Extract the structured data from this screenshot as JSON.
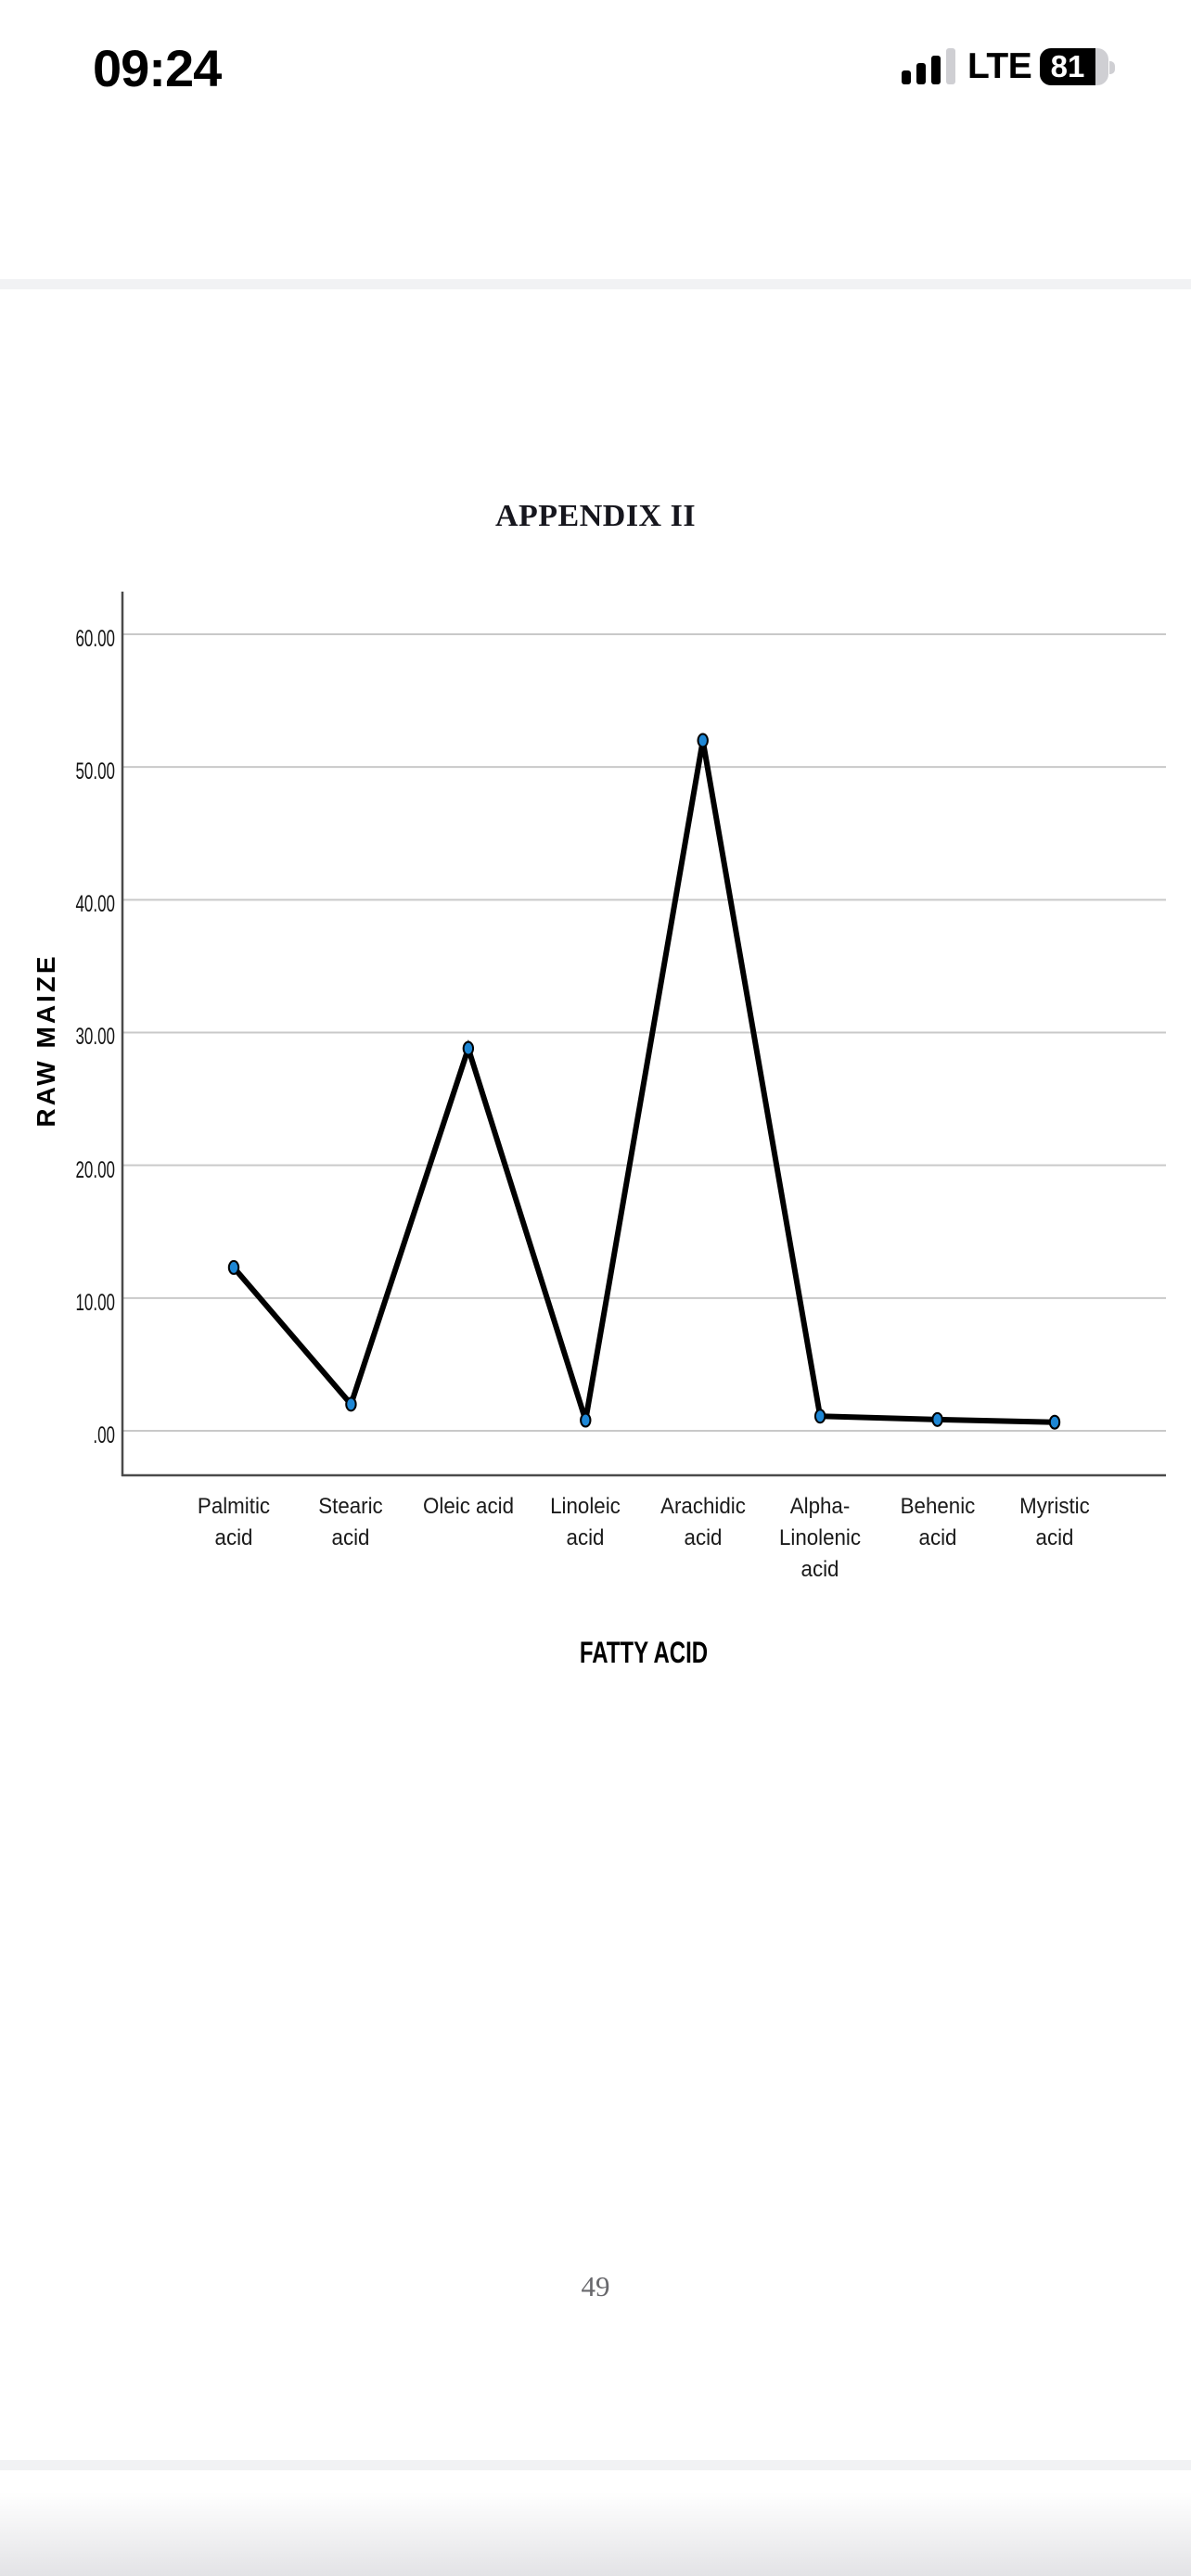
{
  "status_bar": {
    "time": "09:24",
    "network": "LTE",
    "battery_percent": "81",
    "signal_bars_filled": 3,
    "signal_bars_total": 4
  },
  "document": {
    "heading": "APPENDIX II",
    "page_number": "49"
  },
  "chart_data": {
    "type": "line",
    "title": "",
    "xlabel": "FATTY ACID",
    "ylabel": "RAW MAIZE",
    "categories": [
      "Palmitic\nacid",
      "Stearic\nacid",
      "Oleic acid",
      "Linoleic\nacid",
      "Arachidic\nacid",
      "Alpha-\nLinolenic\nacid",
      "Behenic\nacid",
      "Myristic\nacid"
    ],
    "values": [
      12.3,
      2.0,
      28.8,
      0.8,
      52.0,
      1.1,
      0.85,
      0.65
    ],
    "y_ticks": [
      ".00",
      "10.00",
      "20.00",
      "30.00",
      "40.00",
      "50.00",
      "60.00"
    ],
    "y_tick_values": [
      0,
      10,
      20,
      30,
      40,
      50,
      60
    ],
    "ylim": [
      0,
      63
    ],
    "grid": "horizontal",
    "legend": "none",
    "line_color": "#000000",
    "marker_color": "#1e87d5",
    "gridline_color": "#c9c9c9",
    "axis_color": "#4a4a4a"
  }
}
